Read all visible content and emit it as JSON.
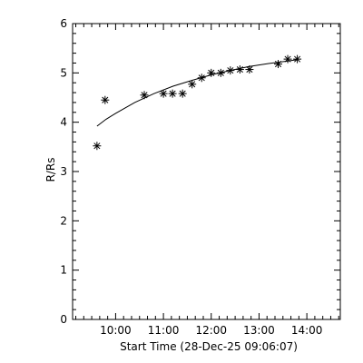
{
  "chart_data": {
    "type": "scatter",
    "title": "",
    "xlabel": "Start Time (28-Dec-25 09:06:07)",
    "ylabel": "R/Rs",
    "x_unit": "hours",
    "xlim": [
      9.1,
      14.7
    ],
    "ylim": [
      0,
      6
    ],
    "xticks": [
      {
        "value": 10,
        "label": "10:00"
      },
      {
        "value": 11,
        "label": "11:00"
      },
      {
        "value": 12,
        "label": "12:00"
      },
      {
        "value": 13,
        "label": "13:00"
      },
      {
        "value": 14,
        "label": "14:00"
      }
    ],
    "yticks": [
      {
        "value": 0,
        "label": "0"
      },
      {
        "value": 1,
        "label": "1"
      },
      {
        "value": 2,
        "label": "2"
      },
      {
        "value": 3,
        "label": "3"
      },
      {
        "value": 4,
        "label": "4"
      },
      {
        "value": 5,
        "label": "5"
      },
      {
        "value": 6,
        "label": "6"
      }
    ],
    "grid": false,
    "marker": "asterisk",
    "series": [
      {
        "points": [
          [
            9.61,
            3.52
          ],
          [
            9.78,
            4.45
          ],
          [
            10.6,
            4.55
          ],
          [
            11.0,
            4.58
          ],
          [
            11.19,
            4.58
          ],
          [
            11.4,
            4.58
          ],
          [
            11.6,
            4.77
          ],
          [
            11.8,
            4.9
          ],
          [
            12.0,
            5.0
          ],
          [
            12.2,
            5.0
          ],
          [
            12.4,
            5.05
          ],
          [
            12.6,
            5.07
          ],
          [
            12.8,
            5.07
          ],
          [
            13.4,
            5.18
          ],
          [
            13.6,
            5.28
          ],
          [
            13.8,
            5.28
          ]
        ]
      }
    ],
    "fit_line": {
      "points": [
        [
          9.61,
          3.92
        ],
        [
          9.8,
          4.06
        ],
        [
          10.0,
          4.18
        ],
        [
          10.4,
          4.4
        ],
        [
          10.8,
          4.58
        ],
        [
          11.2,
          4.73
        ],
        [
          11.6,
          4.85
        ],
        [
          12.0,
          4.96
        ],
        [
          12.4,
          5.05
        ],
        [
          12.8,
          5.13
        ],
        [
          13.2,
          5.19
        ],
        [
          13.6,
          5.24
        ],
        [
          13.8,
          5.27
        ]
      ]
    }
  }
}
